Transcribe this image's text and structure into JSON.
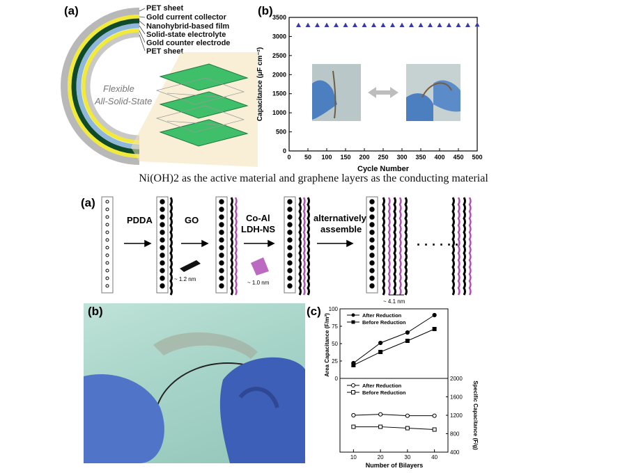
{
  "caption": "Ni(OH)2 as the active material and graphene layers as the conducting material",
  "top_left": {
    "label": "(a)",
    "layers": [
      "PET sheet",
      "Gold current collector",
      "Nanohybrid-based film",
      "Solid-state electrolyte",
      "Gold counter electrode",
      "PET sheet"
    ],
    "arc_text_1": "Flexible",
    "arc_text_2": "All-Solid-State",
    "colors": {
      "pet": "#b8b8b8",
      "gold": "#f2ea3a",
      "film": "#0f4a2a",
      "electrolyte": "#8fb7d9",
      "sheet": "#3fbf6a"
    }
  },
  "top_right": {
    "label": "(b)",
    "xlabel": "Cycle Number",
    "ylabel": "Capacitance (μF cm⁻²)"
  },
  "middle": {
    "label": "(a)",
    "steps": [
      "PDDA",
      "GO",
      "Co-Al",
      "LDH-NS",
      "alternatively",
      "assemble"
    ],
    "dims": [
      "~ 1.2 nm",
      "~ 1.0 nm",
      "~ 4.1 nm"
    ],
    "colors": {
      "dot": "#000000",
      "ldh": "#b04fb6"
    }
  },
  "bottom_left": {
    "label": "(b)"
  },
  "bottom_right": {
    "label": "(c)",
    "top_legend": [
      "After Reduction",
      "Before Reduction"
    ],
    "bottom_legend": [
      "After Reduction",
      "Before Reduction"
    ],
    "ylabel_left": "Area Capacitance (F/m²)",
    "ylabel_right": "Specific Capacitance (F/g)",
    "xlabel": "Number of Bilayers"
  },
  "chart_data": [
    {
      "type": "scatter",
      "xlabel": "Cycle Number",
      "ylabel": "Capacitance (μF cm⁻²)",
      "xlim": [
        0,
        500
      ],
      "ylim": [
        0,
        3500
      ],
      "x_ticks": [
        0,
        50,
        100,
        150,
        200,
        250,
        300,
        350,
        400,
        450,
        500
      ],
      "y_ticks": [
        0,
        500,
        1000,
        1500,
        2000,
        2500,
        3000,
        3500
      ],
      "series": [
        {
          "x": [
            25,
            50,
            75,
            100,
            125,
            150,
            175,
            200,
            225,
            250,
            275,
            300,
            325,
            350,
            375,
            400,
            425,
            450,
            475,
            500
          ],
          "y": [
            3300,
            3300,
            3300,
            3300,
            3300,
            3300,
            3300,
            3300,
            3300,
            3300,
            3300,
            3300,
            3300,
            3300,
            3300,
            3300,
            3300,
            3300,
            3300,
            3310
          ]
        }
      ],
      "marker_color": "#3a3aa8"
    },
    {
      "type": "line",
      "xlabel": "Number of Bilayers",
      "ylabel": "Area Capacitance (F/m²)",
      "x": [
        10,
        20,
        30,
        40
      ],
      "x_ticks": [
        10,
        20,
        30,
        40
      ],
      "xlim": [
        5,
        45
      ],
      "ylim": [
        0,
        100
      ],
      "y_ticks": [
        0,
        25,
        50,
        75,
        100
      ],
      "series": [
        {
          "name": "After Reduction",
          "values": [
            22,
            51,
            66,
            91
          ]
        },
        {
          "name": "Before Reduction",
          "values": [
            19,
            38,
            54,
            71
          ]
        }
      ]
    },
    {
      "type": "line",
      "xlabel": "Number of Bilayers",
      "ylabel": "Specific Capacitance (F/g)",
      "x": [
        10,
        20,
        30,
        40
      ],
      "xlim": [
        5,
        45
      ],
      "ylim": [
        400,
        2000
      ],
      "y_ticks": [
        400,
        800,
        1200,
        1600,
        2000
      ],
      "series": [
        {
          "name": "After Reduction",
          "values": [
            1200,
            1220,
            1190,
            1190
          ]
        },
        {
          "name": "Before Reduction",
          "values": [
            950,
            950,
            920,
            890
          ]
        }
      ]
    }
  ]
}
